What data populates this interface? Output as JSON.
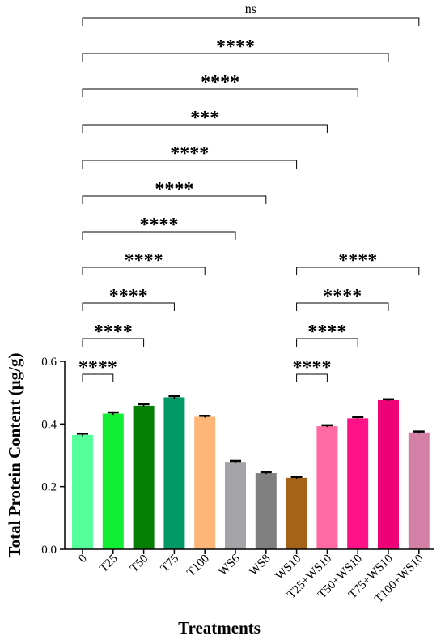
{
  "chart_data": {
    "type": "bar",
    "title": "",
    "xlabel": "Treatments",
    "ylabel": "Total Protein Content (µg/g)",
    "ylim": [
      0,
      0.6
    ],
    "yticks": [
      "0.0",
      "0.2",
      "0.4",
      "0.6"
    ],
    "grid": false,
    "legend": "none",
    "categories": [
      "0",
      "T25",
      "T50",
      "T75",
      "T100",
      "WS6",
      "WS8",
      "WS10",
      "T25+WS10",
      "T50+WS10",
      "T75+WS10",
      "T100+WS10"
    ],
    "values": [
      0.365,
      0.433,
      0.458,
      0.485,
      0.423,
      0.279,
      0.243,
      0.228,
      0.393,
      0.418,
      0.476,
      0.373
    ],
    "errors": [
      0.004,
      0.004,
      0.005,
      0.004,
      0.003,
      0.003,
      0.003,
      0.003,
      0.003,
      0.004,
      0.003,
      0.003
    ],
    "colors": [
      "#55FF99",
      "#11EE33",
      "#058005",
      "#009966",
      "#FFB677",
      "#A3A3A8",
      "#808080",
      "#A5631A",
      "#FF6AA3",
      "#FF1188",
      "#EE0077",
      "#D480A6"
    ],
    "comparisons": [
      {
        "from": 0,
        "to": 1,
        "label": "****"
      },
      {
        "from": 0,
        "to": 2,
        "label": "****"
      },
      {
        "from": 0,
        "to": 3,
        "label": "****"
      },
      {
        "from": 0,
        "to": 4,
        "label": "****"
      },
      {
        "from": 0,
        "to": 5,
        "label": "****"
      },
      {
        "from": 0,
        "to": 6,
        "label": "****"
      },
      {
        "from": 0,
        "to": 7,
        "label": "****"
      },
      {
        "from": 0,
        "to": 8,
        "label": "***"
      },
      {
        "from": 0,
        "to": 9,
        "label": "****"
      },
      {
        "from": 0,
        "to": 10,
        "label": "****"
      },
      {
        "from": 0,
        "to": 11,
        "label": "ns"
      },
      {
        "from": 7,
        "to": 8,
        "label": "****"
      },
      {
        "from": 7,
        "to": 9,
        "label": "****"
      },
      {
        "from": 7,
        "to": 10,
        "label": "****"
      },
      {
        "from": 7,
        "to": 11,
        "label": "****"
      }
    ]
  }
}
